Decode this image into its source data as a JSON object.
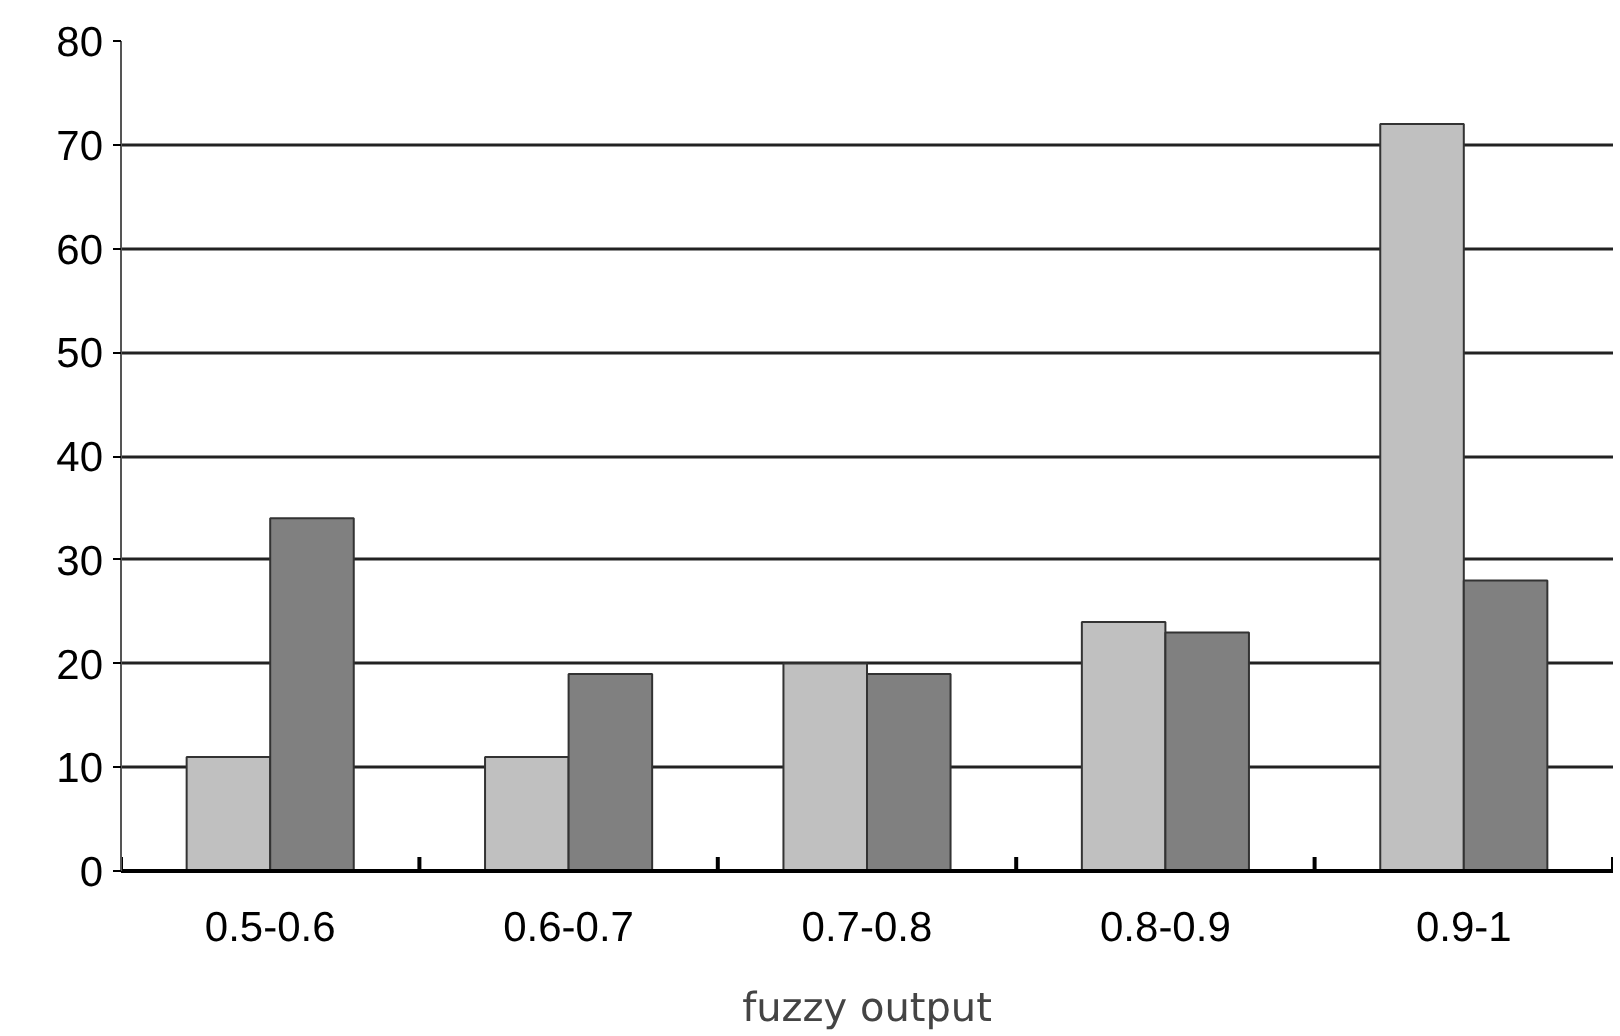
{
  "chart_data": {
    "type": "bar",
    "xlabel": "fuzzy output",
    "categories": [
      "0.5-0.6",
      "0.6-0.7",
      "0.7-0.8",
      "0.8-0.9",
      "0.9-1"
    ],
    "series": [
      {
        "color": "#c0c0c0",
        "values": [
          11,
          11,
          20,
          24,
          72
        ]
      },
      {
        "color": "#808080",
        "values": [
          34,
          19,
          19,
          23,
          28
        ]
      }
    ],
    "ylim": [
      0,
      80
    ],
    "yticks": [
      0,
      10,
      20,
      30,
      40,
      50,
      60,
      70,
      80
    ],
    "grid": "y"
  }
}
